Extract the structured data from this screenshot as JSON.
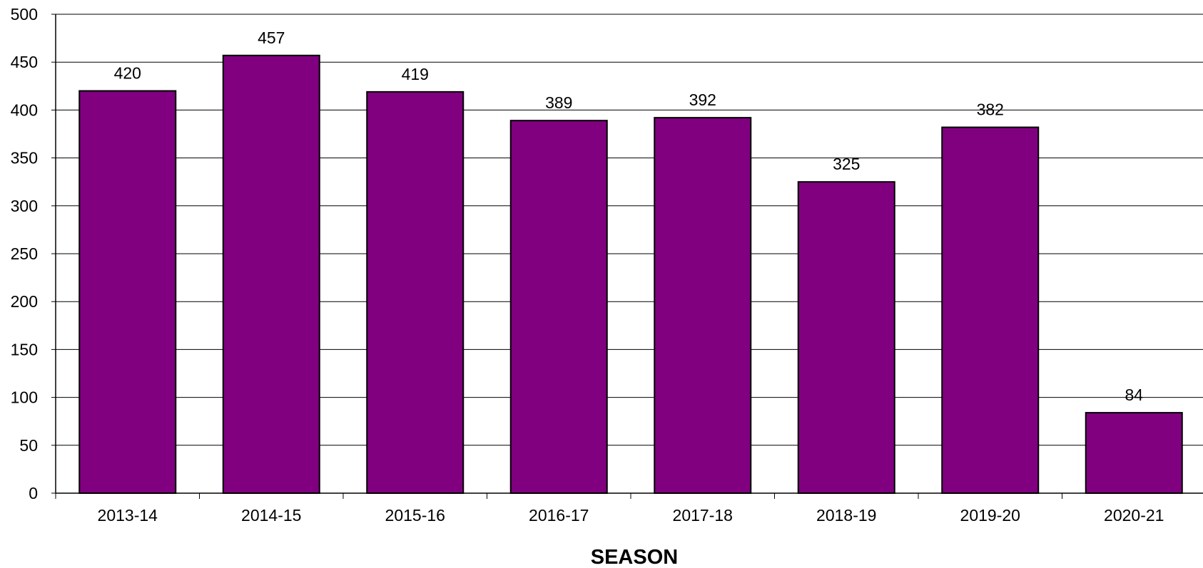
{
  "chart_data": {
    "type": "bar",
    "categories": [
      "2013-14",
      "2014-15",
      "2015-16",
      "2016-17",
      "2017-18",
      "2018-19",
      "2019-20",
      "2020-21"
    ],
    "values": [
      420,
      457,
      419,
      389,
      392,
      325,
      382,
      84
    ],
    "data_labels": [
      "420",
      "457",
      "419",
      "389",
      "392",
      "325",
      "382",
      "84"
    ],
    "xlabel": "SEASON",
    "ylabel": "",
    "ylim": [
      0,
      500
    ],
    "yticks": [
      0,
      50,
      100,
      150,
      200,
      250,
      300,
      350,
      400,
      450,
      500
    ],
    "ytick_labels": [
      "0",
      "50",
      "100",
      "150",
      "200",
      "250",
      "300",
      "350",
      "400",
      "450",
      "500"
    ],
    "grid": "horizontal",
    "legend": "none",
    "bar_color": "#800080",
    "bar_edge_color": "#000000"
  }
}
